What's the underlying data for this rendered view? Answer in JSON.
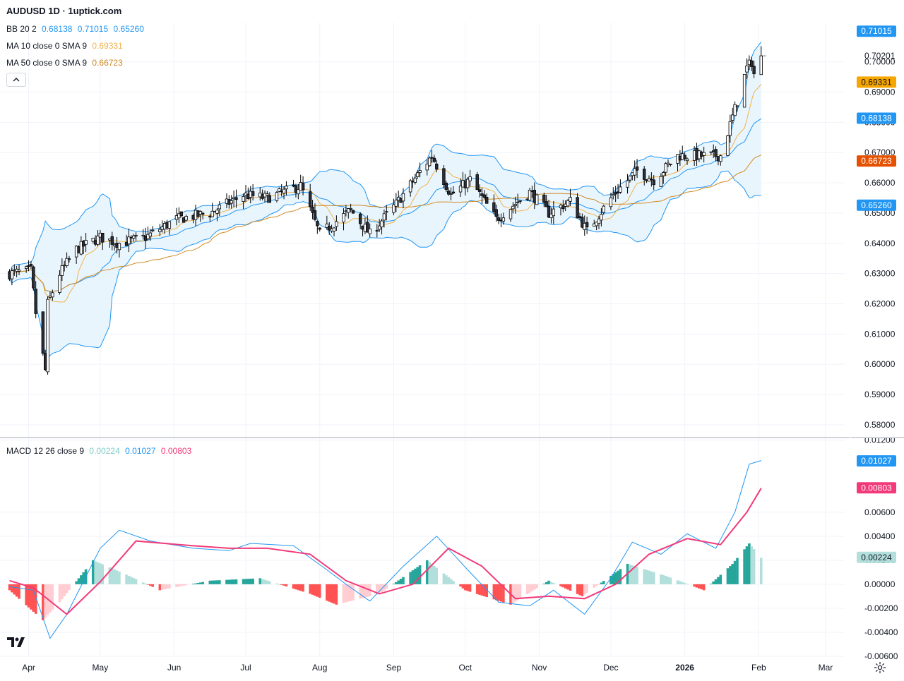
{
  "title": "AUDUSD 1D · 1uptick.com",
  "legends": {
    "bb": {
      "label": "BB 20 2",
      "values": [
        "0.68138",
        "0.71015",
        "0.65260"
      ]
    },
    "ma10": {
      "label": "MA 10 close 0 SMA 9",
      "value": "0.69331"
    },
    "ma50": {
      "label": "MA 50 close 0 SMA 9",
      "value": "0.66723"
    },
    "macd": {
      "label": "MACD 12 26 close 9",
      "values": [
        "0.00224",
        "0.01027",
        "0.00803"
      ]
    }
  },
  "colors": {
    "up": "#ffffff",
    "down": "#2a2e39",
    "candle_outline": "#000000",
    "bb": "#2196f3",
    "bb_fill": "#e3f2fd",
    "ma10": "#f0b24b",
    "ma50": "#d18a22",
    "macd_line": "#2196f3",
    "signal_line": "#f23a7a",
    "hist_pos_strong": "#26a69a",
    "hist_pos_weak": "#b2dfdb",
    "hist_neg_strong": "#ff5252",
    "hist_neg_weak": "#ffcdd2",
    "grid": "#f0f3fa",
    "text": "#131722"
  },
  "chart_data": {
    "type": "candlestick",
    "symbol": "AUDUSD",
    "timeframe": "1D",
    "x_labels": [
      "Apr",
      "May",
      "Jun",
      "Jul",
      "Aug",
      "Sep",
      "Oct",
      "Nov",
      "Dec",
      "2026",
      "Feb",
      "Mar"
    ],
    "y_ticks": [
      "0.70000",
      "0.69000",
      "0.68000",
      "0.67000",
      "0.66000",
      "0.65000",
      "0.64000",
      "0.63000",
      "0.62000",
      "0.61000",
      "0.60000",
      "0.59000",
      "0.58000"
    ],
    "ylim": [
      0.576,
      0.713
    ],
    "last_price": "0.70201",
    "price_labels": {
      "bb_upper": "0.71015",
      "ma10": "0.69331",
      "bb_basis": "0.68138",
      "ma50": "0.66723",
      "bb_lower": "0.65260"
    },
    "close_path": [
      {
        "date": "2025-03-24",
        "close": 0.63
      },
      {
        "date": "2025-04-02",
        "close": 0.631
      },
      {
        "date": "2025-04-04",
        "close": 0.617
      },
      {
        "date": "2025-04-08",
        "close": 0.598
      },
      {
        "date": "2025-04-09",
        "close": 0.62
      },
      {
        "date": "2025-04-14",
        "close": 0.63
      },
      {
        "date": "2025-04-21",
        "close": 0.638
      },
      {
        "date": "2025-05-01",
        "close": 0.642
      },
      {
        "date": "2025-05-09",
        "close": 0.64
      },
      {
        "date": "2025-05-20",
        "close": 0.642
      },
      {
        "date": "2025-06-02",
        "close": 0.648
      },
      {
        "date": "2025-06-16",
        "close": 0.65
      },
      {
        "date": "2025-06-30",
        "close": 0.656
      },
      {
        "date": "2025-07-10",
        "close": 0.655
      },
      {
        "date": "2025-07-24",
        "close": 0.659
      },
      {
        "date": "2025-08-01",
        "close": 0.643
      },
      {
        "date": "2025-08-14",
        "close": 0.651
      },
      {
        "date": "2025-08-22",
        "close": 0.643
      },
      {
        "date": "2025-09-02",
        "close": 0.653
      },
      {
        "date": "2025-09-17",
        "close": 0.669
      },
      {
        "date": "2025-09-25",
        "close": 0.656
      },
      {
        "date": "2025-10-03",
        "close": 0.661
      },
      {
        "date": "2025-10-14",
        "close": 0.648
      },
      {
        "date": "2025-10-28",
        "close": 0.657
      },
      {
        "date": "2025-11-05",
        "close": 0.65
      },
      {
        "date": "2025-11-14",
        "close": 0.654
      },
      {
        "date": "2025-11-21",
        "close": 0.644
      },
      {
        "date": "2025-12-02",
        "close": 0.656
      },
      {
        "date": "2025-12-12",
        "close": 0.664
      },
      {
        "date": "2025-12-19",
        "close": 0.661
      },
      {
        "date": "2025-12-29",
        "close": 0.669
      },
      {
        "date": "2026-01-09",
        "close": 0.669
      },
      {
        "date": "2026-01-16",
        "close": 0.669
      },
      {
        "date": "2026-01-23",
        "close": 0.687
      },
      {
        "date": "2026-01-27",
        "close": 0.698
      },
      {
        "date": "2026-01-29",
        "close": 0.7
      },
      {
        "date": "2026-01-30",
        "close": 0.696
      },
      {
        "date": "2026-02-02",
        "close": 0.702
      }
    ],
    "macd": {
      "y_ticks": [
        "0.01200",
        "0.00600",
        "0.00400",
        "0.00200",
        "0.00000",
        "-0.00200",
        "-0.00400",
        "-0.00600"
      ],
      "ylim": [
        -0.006,
        0.0121
      ],
      "price_labels": {
        "macd": "0.01027",
        "signal": "0.00803",
        "hist": "0.00224"
      },
      "macd_line": [
        {
          "date": "2025-03-24",
          "value": -0.0002
        },
        {
          "date": "2025-04-03",
          "value": -0.0005
        },
        {
          "date": "2025-04-10",
          "value": -0.0045
        },
        {
          "date": "2025-04-17",
          "value": -0.0025
        },
        {
          "date": "2025-05-01",
          "value": 0.003
        },
        {
          "date": "2025-05-09",
          "value": 0.0045
        },
        {
          "date": "2025-05-22",
          "value": 0.0036
        },
        {
          "date": "2025-06-09",
          "value": 0.003
        },
        {
          "date": "2025-06-24",
          "value": 0.0028
        },
        {
          "date": "2025-07-03",
          "value": 0.0034
        },
        {
          "date": "2025-07-21",
          "value": 0.0032
        },
        {
          "date": "2025-08-04",
          "value": 0.0012
        },
        {
          "date": "2025-08-12",
          "value": 0.0
        },
        {
          "date": "2025-08-22",
          "value": -0.0014
        },
        {
          "date": "2025-09-05",
          "value": 0.0015
        },
        {
          "date": "2025-09-19",
          "value": 0.004
        },
        {
          "date": "2025-10-02",
          "value": 0.0012
        },
        {
          "date": "2025-10-15",
          "value": -0.0015
        },
        {
          "date": "2025-10-28",
          "value": -0.0018
        },
        {
          "date": "2025-11-07",
          "value": -0.0005
        },
        {
          "date": "2025-11-20",
          "value": -0.0025
        },
        {
          "date": "2025-12-01",
          "value": 0.0005
        },
        {
          "date": "2025-12-10",
          "value": 0.0035
        },
        {
          "date": "2025-12-22",
          "value": 0.0025
        },
        {
          "date": "2026-01-02",
          "value": 0.0042
        },
        {
          "date": "2026-01-14",
          "value": 0.003
        },
        {
          "date": "2026-01-22",
          "value": 0.006
        },
        {
          "date": "2026-01-28",
          "value": 0.01
        },
        {
          "date": "2026-02-02",
          "value": 0.0103
        }
      ],
      "signal_line": [
        {
          "date": "2025-03-24",
          "value": 0.0003
        },
        {
          "date": "2025-04-03",
          "value": -0.0003
        },
        {
          "date": "2025-04-17",
          "value": -0.0025
        },
        {
          "date": "2025-05-01",
          "value": 0.0002
        },
        {
          "date": "2025-05-16",
          "value": 0.0036
        },
        {
          "date": "2025-06-09",
          "value": 0.0032
        },
        {
          "date": "2025-06-24",
          "value": 0.003
        },
        {
          "date": "2025-07-10",
          "value": 0.003
        },
        {
          "date": "2025-07-28",
          "value": 0.0025
        },
        {
          "date": "2025-08-12",
          "value": 0.0003
        },
        {
          "date": "2025-08-26",
          "value": -0.0008
        },
        {
          "date": "2025-09-09",
          "value": 0.0
        },
        {
          "date": "2025-09-24",
          "value": 0.003
        },
        {
          "date": "2025-10-08",
          "value": 0.0015
        },
        {
          "date": "2025-10-22",
          "value": -0.0012
        },
        {
          "date": "2025-11-05",
          "value": -0.001
        },
        {
          "date": "2025-11-20",
          "value": -0.0012
        },
        {
          "date": "2025-12-03",
          "value": 0.0
        },
        {
          "date": "2025-12-17",
          "value": 0.0025
        },
        {
          "date": "2026-01-02",
          "value": 0.0038
        },
        {
          "date": "2026-01-16",
          "value": 0.0033
        },
        {
          "date": "2026-01-27",
          "value": 0.006
        },
        {
          "date": "2026-02-02",
          "value": 0.008
        }
      ],
      "histogram": [
        {
          "date": "2025-03-24",
          "value": -0.0005
        },
        {
          "date": "2025-04-07",
          "value": -0.003
        },
        {
          "date": "2025-04-14",
          "value": -0.0015
        },
        {
          "date": "2025-04-28",
          "value": 0.002
        },
        {
          "date": "2025-05-12",
          "value": 0.0008
        },
        {
          "date": "2025-05-26",
          "value": -0.0005
        },
        {
          "date": "2025-06-16",
          "value": 0.0003
        },
        {
          "date": "2025-07-07",
          "value": 0.0005
        },
        {
          "date": "2025-07-28",
          "value": -0.0008
        },
        {
          "date": "2025-08-08",
          "value": -0.0017
        },
        {
          "date": "2025-08-26",
          "value": -0.0008
        },
        {
          "date": "2025-09-15",
          "value": 0.002
        },
        {
          "date": "2025-10-01",
          "value": -0.0005
        },
        {
          "date": "2025-10-20",
          "value": -0.0017
        },
        {
          "date": "2025-11-05",
          "value": 0.0003
        },
        {
          "date": "2025-11-19",
          "value": -0.001
        },
        {
          "date": "2025-12-08",
          "value": 0.0017
        },
        {
          "date": "2025-12-24",
          "value": 0.0007
        },
        {
          "date": "2026-01-09",
          "value": -0.0005
        },
        {
          "date": "2026-01-21",
          "value": 0.0017
        },
        {
          "date": "2026-01-28",
          "value": 0.0034
        },
        {
          "date": "2026-02-02",
          "value": 0.0022
        }
      ]
    }
  }
}
